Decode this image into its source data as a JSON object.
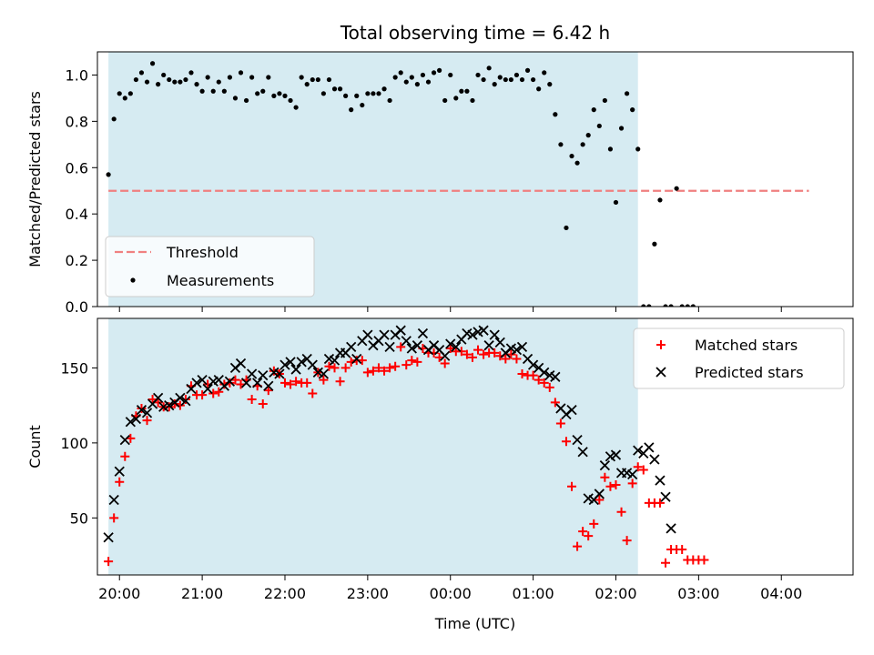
{
  "chart_data": [
    {
      "type": "scatter",
      "title": "Total observing time = 6.42 h",
      "xlabel": "",
      "ylabel": "Matched/Predicted stars",
      "ylim": [
        0,
        1.1
      ],
      "xlim": [
        "19:44",
        "04:52"
      ],
      "yticks": [
        0.0,
        0.2,
        0.4,
        0.6,
        0.8,
        1.0
      ],
      "ytick_labels": [
        "0.0",
        "0.2",
        "0.4",
        "0.6",
        "0.8",
        "1.0"
      ],
      "shaded_span": [
        "19:52",
        "02:16"
      ],
      "legend_position": "lower-left",
      "threshold": {
        "name": "Threshold",
        "y": 0.5,
        "x": [
          "19:52",
          "04:20"
        ],
        "color": "#f08080"
      },
      "series": [
        {
          "name": "Measurements",
          "color": "#000000",
          "points": [
            [
              "19:52",
              0.57
            ],
            [
              "19:56",
              0.81
            ],
            [
              "20:00",
              0.92
            ],
            [
              "20:04",
              0.9
            ],
            [
              "20:08",
              0.92
            ],
            [
              "20:12",
              0.98
            ],
            [
              "20:16",
              1.01
            ],
            [
              "20:20",
              0.97
            ],
            [
              "20:24",
              1.05
            ],
            [
              "20:28",
              0.96
            ],
            [
              "20:32",
              1.0
            ],
            [
              "20:36",
              0.98
            ],
            [
              "20:40",
              0.97
            ],
            [
              "20:44",
              0.97
            ],
            [
              "20:48",
              0.98
            ],
            [
              "20:52",
              1.01
            ],
            [
              "20:56",
              0.96
            ],
            [
              "21:00",
              0.93
            ],
            [
              "21:04",
              0.99
            ],
            [
              "21:08",
              0.93
            ],
            [
              "21:12",
              0.97
            ],
            [
              "21:16",
              0.93
            ],
            [
              "21:20",
              0.99
            ],
            [
              "21:24",
              0.9
            ],
            [
              "21:28",
              1.01
            ],
            [
              "21:32",
              0.89
            ],
            [
              "21:36",
              0.99
            ],
            [
              "21:40",
              0.92
            ],
            [
              "21:44",
              0.93
            ],
            [
              "21:48",
              0.99
            ],
            [
              "21:52",
              0.91
            ],
            [
              "21:56",
              0.92
            ],
            [
              "22:00",
              0.91
            ],
            [
              "22:04",
              0.89
            ],
            [
              "22:08",
              0.86
            ],
            [
              "22:12",
              0.99
            ],
            [
              "22:16",
              0.96
            ],
            [
              "22:20",
              0.98
            ],
            [
              "22:24",
              0.98
            ],
            [
              "22:28",
              0.92
            ],
            [
              "22:32",
              0.98
            ],
            [
              "22:36",
              0.94
            ],
            [
              "22:40",
              0.94
            ],
            [
              "22:44",
              0.91
            ],
            [
              "22:48",
              0.85
            ],
            [
              "22:52",
              0.91
            ],
            [
              "22:56",
              0.87
            ],
            [
              "23:00",
              0.92
            ],
            [
              "23:04",
              0.92
            ],
            [
              "23:08",
              0.92
            ],
            [
              "23:12",
              0.94
            ],
            [
              "23:16",
              0.89
            ],
            [
              "23:20",
              0.99
            ],
            [
              "23:24",
              1.01
            ],
            [
              "23:28",
              0.97
            ],
            [
              "23:32",
              0.99
            ],
            [
              "23:36",
              0.96
            ],
            [
              "23:40",
              1.0
            ],
            [
              "23:44",
              0.97
            ],
            [
              "23:48",
              1.01
            ],
            [
              "23:52",
              1.02
            ],
            [
              "23:56",
              0.89
            ],
            [
              "00:00",
              1.0
            ],
            [
              "00:04",
              0.9
            ],
            [
              "00:08",
              0.93
            ],
            [
              "00:12",
              0.93
            ],
            [
              "00:16",
              0.89
            ],
            [
              "00:20",
              1.0
            ],
            [
              "00:24",
              0.98
            ],
            [
              "00:28",
              1.03
            ],
            [
              "00:32",
              0.96
            ],
            [
              "00:36",
              0.99
            ],
            [
              "00:40",
              0.98
            ],
            [
              "00:44",
              0.98
            ],
            [
              "00:48",
              1.0
            ],
            [
              "00:52",
              0.98
            ],
            [
              "00:56",
              1.02
            ],
            [
              "01:00",
              0.98
            ],
            [
              "01:04",
              0.94
            ],
            [
              "01:08",
              1.01
            ],
            [
              "01:12",
              0.96
            ],
            [
              "01:16",
              0.83
            ],
            [
              "01:20",
              0.7
            ],
            [
              "01:24",
              0.34
            ],
            [
              "01:28",
              0.65
            ],
            [
              "01:32",
              0.62
            ],
            [
              "01:36",
              0.7
            ],
            [
              "01:40",
              0.74
            ],
            [
              "01:44",
              0.85
            ],
            [
              "01:48",
              0.78
            ],
            [
              "01:52",
              0.89
            ],
            [
              "01:56",
              0.68
            ],
            [
              "02:00",
              0.45
            ],
            [
              "02:04",
              0.77
            ],
            [
              "02:08",
              0.92
            ],
            [
              "02:12",
              0.85
            ],
            [
              "02:16",
              0.68
            ],
            [
              "02:20",
              0.0
            ],
            [
              "02:24",
              0.0
            ],
            [
              "02:28",
              0.27
            ],
            [
              "02:32",
              0.46
            ],
            [
              "02:36",
              0.0
            ],
            [
              "02:40",
              0.0
            ],
            [
              "02:44",
              0.51
            ],
            [
              "02:48",
              0.0
            ],
            [
              "02:52",
              0.0
            ],
            [
              "02:56",
              0.0
            ]
          ]
        }
      ]
    },
    {
      "type": "scatter",
      "title": "",
      "xlabel": "Time (UTC)",
      "ylabel": "Count",
      "ylim": [
        12,
        183
      ],
      "xlim": [
        "19:44",
        "04:52"
      ],
      "yticks": [
        50,
        100,
        150
      ],
      "ytick_labels": [
        "50",
        "100",
        "150"
      ],
      "xticks": [
        "20:00",
        "21:00",
        "22:00",
        "23:00",
        "00:00",
        "01:00",
        "02:00",
        "03:00",
        "04:00"
      ],
      "xtick_labels": [
        "20:00",
        "21:00",
        "22:00",
        "23:00",
        "00:00",
        "01:00",
        "02:00",
        "03:00",
        "04:00"
      ],
      "shaded_span": [
        "19:52",
        "02:16"
      ],
      "legend_position": "upper-right",
      "series": [
        {
          "name": "Matched stars",
          "marker": "plus",
          "color": "#ff0000",
          "values": [
            21,
            50,
            74,
            91,
            103,
            118,
            123,
            115,
            129,
            127,
            124,
            124,
            126,
            125,
            129,
            138,
            132,
            132,
            139,
            133,
            134,
            139,
            140,
            142,
            139,
            142,
            129,
            138,
            126,
            135,
            148,
            146,
            140,
            139,
            141,
            140,
            140,
            133,
            147,
            142,
            151,
            150,
            141,
            150,
            154,
            155,
            155,
            147,
            148,
            150,
            148,
            150,
            151,
            164,
            152,
            155,
            154,
            163,
            160,
            160,
            157,
            153,
            163,
            161,
            161,
            159,
            157,
            162,
            159,
            160,
            160,
            158,
            156,
            159,
            156,
            146,
            145,
            145,
            142,
            140,
            137,
            127,
            113,
            101,
            71,
            31,
            41,
            38,
            46,
            62,
            77,
            71,
            72,
            54,
            35,
            73,
            84,
            82,
            60,
            60,
            60,
            20,
            29,
            29,
            29,
            22,
            22,
            22,
            22
          ]
        },
        {
          "name": "Predicted stars",
          "marker": "x",
          "color": "#000000",
          "points": [
            [
              "19:52",
              37
            ],
            [
              "19:56",
              62
            ],
            [
              "20:00",
              81
            ],
            [
              "20:04",
              102
            ],
            [
              "20:08",
              114
            ],
            [
              "20:12",
              116
            ],
            [
              "20:16",
              122
            ],
            [
              "20:20",
              120
            ],
            [
              "20:24",
              126
            ],
            [
              "20:28",
              130
            ],
            [
              "20:32",
              124
            ],
            [
              "20:36",
              125
            ],
            [
              "20:40",
              127
            ],
            [
              "20:44",
              130
            ],
            [
              "20:48",
              128
            ],
            [
              "20:52",
              136
            ],
            [
              "20:56",
              140
            ],
            [
              "21:00",
              142
            ],
            [
              "21:04",
              136
            ],
            [
              "21:08",
              141
            ],
            [
              "21:12",
              142
            ],
            [
              "21:16",
              138
            ],
            [
              "21:20",
              141
            ],
            [
              "21:24",
              150
            ],
            [
              "21:28",
              153
            ],
            [
              "21:32",
              140
            ],
            [
              "21:36",
              146
            ],
            [
              "21:40",
              140
            ],
            [
              "21:44",
              145
            ],
            [
              "21:48",
              138
            ],
            [
              "21:52",
              147
            ],
            [
              "21:56",
              146
            ],
            [
              "22:00",
              152
            ],
            [
              "22:04",
              154
            ],
            [
              "22:08",
              149
            ],
            [
              "22:12",
              154
            ],
            [
              "22:16",
              156
            ],
            [
              "22:20",
              152
            ],
            [
              "22:24",
              147
            ],
            [
              "22:28",
              146
            ],
            [
              "22:32",
              156
            ],
            [
              "22:36",
              155
            ],
            [
              "22:40",
              160
            ],
            [
              "22:44",
              160
            ],
            [
              "22:48",
              164
            ],
            [
              "22:52",
              156
            ],
            [
              "22:56",
              168
            ],
            [
              "23:00",
              172
            ],
            [
              "23:04",
              165
            ],
            [
              "23:08",
              168
            ],
            [
              "23:12",
              172
            ],
            [
              "23:16",
              164
            ],
            [
              "23:20",
              172
            ],
            [
              "23:24",
              175
            ],
            [
              "23:28",
              168
            ],
            [
              "23:32",
              163
            ],
            [
              "23:36",
              165
            ],
            [
              "23:40",
              173
            ],
            [
              "23:44",
              162
            ],
            [
              "23:48",
              165
            ],
            [
              "23:52",
              162
            ],
            [
              "23:56",
              158
            ],
            [
              "00:00",
              166
            ],
            [
              "00:04",
              164
            ],
            [
              "00:08",
              169
            ],
            [
              "00:12",
              173
            ],
            [
              "00:16",
              172
            ],
            [
              "00:20",
              174
            ],
            [
              "00:24",
              175
            ],
            [
              "00:28",
              165
            ],
            [
              "00:32",
              172
            ],
            [
              "00:36",
              167
            ],
            [
              "00:40",
              160
            ],
            [
              "00:44",
              163
            ],
            [
              "00:48",
              162
            ],
            [
              "00:52",
              164
            ],
            [
              "00:56",
              156
            ],
            [
              "01:00",
              152
            ],
            [
              "01:04",
              150
            ],
            [
              "01:08",
              147
            ],
            [
              "01:12",
              145
            ],
            [
              "01:16",
              144
            ],
            [
              "01:20",
              123
            ],
            [
              "01:24",
              119
            ],
            [
              "01:28",
              122
            ],
            [
              "01:32",
              102
            ],
            [
              "01:36",
              94
            ],
            [
              "01:40",
              63
            ],
            [
              "01:44",
              62
            ],
            [
              "01:48",
              66
            ],
            [
              "01:52",
              85
            ],
            [
              "01:56",
              91
            ],
            [
              "02:00",
              92
            ],
            [
              "02:04",
              80
            ],
            [
              "02:08",
              80
            ],
            [
              "02:12",
              79
            ],
            [
              "02:16",
              95
            ],
            [
              "02:20",
              93
            ],
            [
              "02:24",
              97
            ],
            [
              "02:28",
              89
            ],
            [
              "02:32",
              75
            ],
            [
              "02:36",
              64
            ],
            [
              "02:40",
              43
            ]
          ]
        }
      ]
    }
  ]
}
